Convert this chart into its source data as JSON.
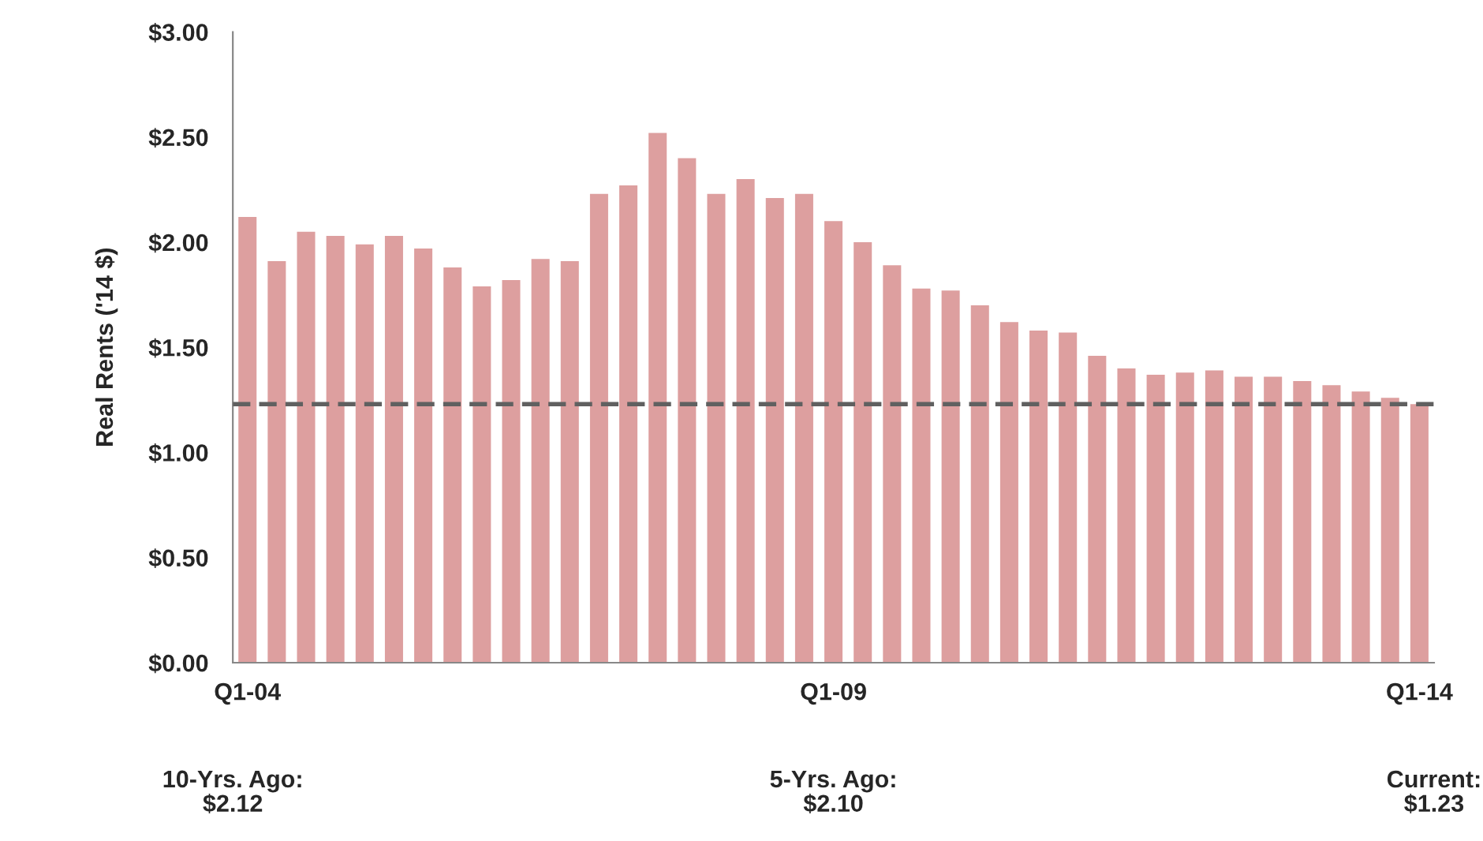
{
  "chart_data": {
    "type": "bar",
    "ylabel": "Real Rents ('14 $)",
    "categories": [
      "Q1-04",
      null,
      null,
      null,
      null,
      null,
      null,
      null,
      null,
      null,
      null,
      null,
      null,
      null,
      null,
      null,
      null,
      null,
      null,
      null,
      "Q1-09",
      null,
      null,
      null,
      null,
      null,
      null,
      null,
      null,
      null,
      null,
      null,
      null,
      null,
      null,
      null,
      null,
      null,
      null,
      null,
      "Q1-14"
    ],
    "values": [
      2.12,
      1.91,
      2.05,
      2.03,
      1.99,
      2.03,
      1.97,
      1.88,
      1.79,
      1.82,
      1.92,
      1.91,
      2.23,
      2.27,
      2.52,
      2.4,
      2.23,
      2.3,
      2.21,
      2.23,
      2.1,
      2.0,
      1.89,
      1.78,
      1.77,
      1.7,
      1.62,
      1.58,
      1.57,
      1.46,
      1.4,
      1.37,
      1.38,
      1.39,
      1.36,
      1.36,
      1.34,
      1.32,
      1.29,
      1.26,
      1.23
    ],
    "color": "#dd9f9f",
    "ylim": [
      0,
      3
    ],
    "yticks": [
      {
        "value": 0,
        "label": "$0.00"
      },
      {
        "value": 0.5,
        "label": "$0.50"
      },
      {
        "value": 1,
        "label": "$1.00"
      },
      {
        "value": 1.5,
        "label": "$1.50"
      },
      {
        "value": 2,
        "label": "$2.00"
      },
      {
        "value": 2.5,
        "label": "$2.50"
      },
      {
        "value": 3,
        "label": "$3.00"
      }
    ],
    "ref_lines": [
      {
        "axis": "y",
        "value": 1.23,
        "color": "#606060",
        "line_style": "dashed"
      }
    ],
    "annotations": [
      "10-Yrs. Ago:\n$2.12",
      "5-Yrs. Ago:\n$2.10",
      "Current:\n$1.23"
    ],
    "grid": false,
    "legend": false
  }
}
